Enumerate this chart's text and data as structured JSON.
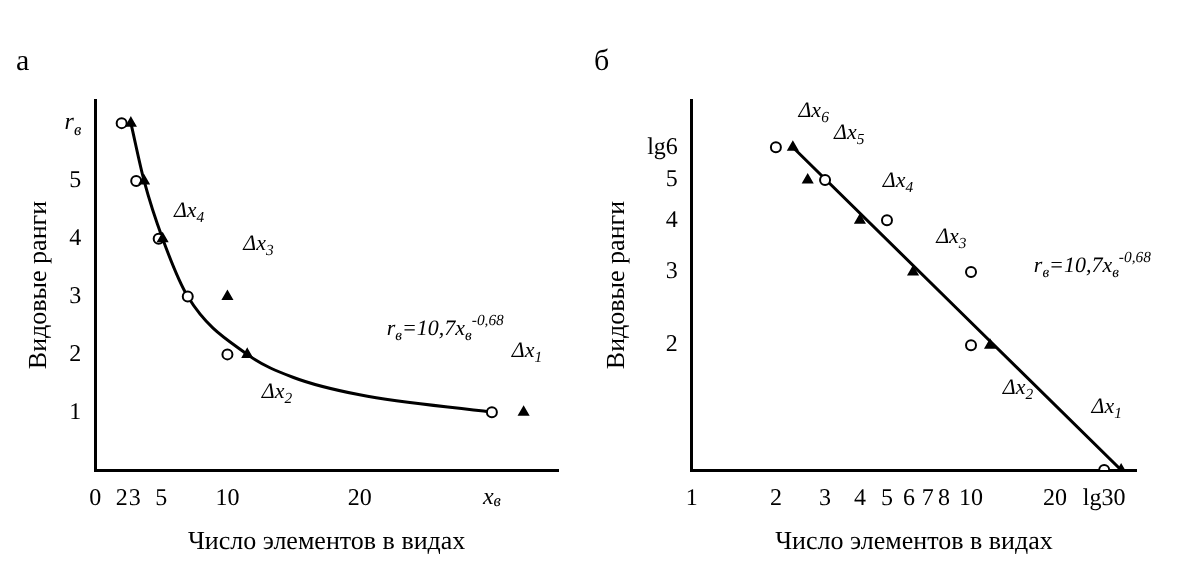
{
  "chart_data": [
    {
      "type": "scatter",
      "title": "а",
      "xlabel": "Число элементов в видах",
      "ylabel": "Видовые ранги",
      "xlim": [
        0,
        35
      ],
      "ylim": [
        0,
        6.4
      ],
      "xticks": [
        0,
        2,
        3,
        5,
        10,
        20,
        {
          "value": 30,
          "label": "x$_{в}$"
        }
      ],
      "yticks": [
        1,
        2,
        3,
        4,
        5,
        {
          "value": 6,
          "label": "r$_{в}$"
        }
      ],
      "grid": false,
      "legend": false,
      "series": [
        {
          "type": "line",
          "color": "#000000",
          "marker": "none",
          "x": [
            2.7,
            3.7,
            5.1,
            7,
            11.5,
            15,
            20,
            30
          ],
          "values": [
            6,
            5,
            4,
            3,
            2,
            1.6,
            1.3,
            1
          ]
        },
        {
          "color": "#000000",
          "marker": "circle",
          "x": [
            2,
            3.1,
            4.8,
            7,
            10,
            30
          ],
          "values": [
            6,
            5,
            4,
            3,
            2,
            1
          ]
        },
        {
          "color": "#000000",
          "marker": "triangle",
          "x": [
            2.7,
            3.7,
            5.1,
            10,
            11.5,
            32.4
          ],
          "values": [
            6,
            5,
            4,
            3,
            2,
            1
          ]
        }
      ],
      "annotations": [
        "Δx$_{4}$",
        "Δx$_{3}$",
        "Δx$_{2}$",
        "Δx$_{1}$",
        "r$_{в}$=10,7x$_{в}$$^{-0,68}$"
      ]
    },
    {
      "type": "scatter",
      "title": "б",
      "xlabel": "Число элементов в видах",
      "ylabel": "Видовые ранги",
      "log": "xy",
      "xlim": [
        1,
        39
      ],
      "ylim": [
        1,
        7.8
      ],
      "xticks": [
        1,
        2,
        3,
        4,
        5,
        6,
        7,
        8,
        10,
        20,
        {
          "value": 30,
          "label": "lg30"
        }
      ],
      "yticks": [
        2,
        3,
        4,
        5,
        {
          "value": 6,
          "label": "lg6"
        }
      ],
      "grid": false,
      "legend": false,
      "series": [
        {
          "type": "line",
          "color": "#000000",
          "marker": "none",
          "x": [
            2.3,
            34.5
          ],
          "values": [
            6,
            1
          ]
        },
        {
          "color": "#000000",
          "marker": "circle",
          "x": [
            2,
            3,
            5,
            10,
            10,
            30
          ],
          "values": [
            6,
            5,
            4,
            3,
            2,
            1
          ]
        },
        {
          "color": "#000000",
          "marker": "triangle",
          "x": [
            2.3,
            2.6,
            4,
            6.2,
            11.7,
            34.5
          ],
          "values": [
            6,
            5,
            4,
            3,
            2,
            1
          ]
        }
      ],
      "annotations": [
        "Δx$_{6}$",
        "Δx$_{5}$",
        "Δx$_{4}$",
        "Δx$_{3}$",
        "Δx$_{2}$",
        "Δx$_{1}$",
        "r$_{в}$=10,7x$_{в}$$^{-0,68}$"
      ]
    }
  ]
}
